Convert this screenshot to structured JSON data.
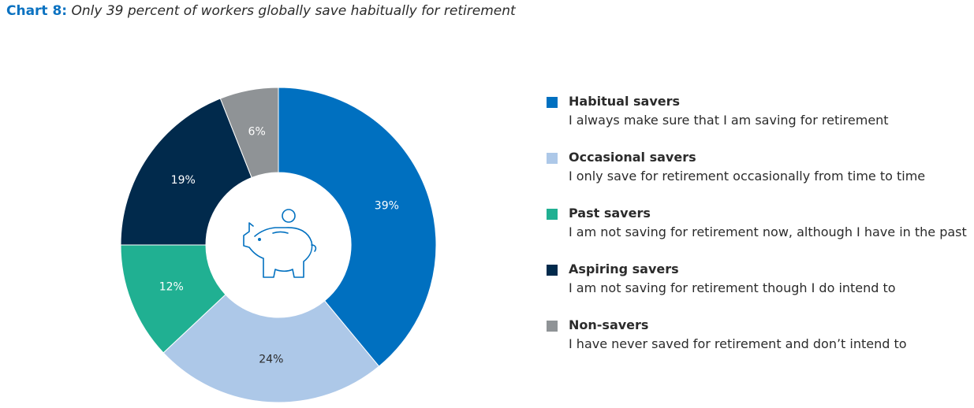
{
  "title": {
    "prefix": "Chart 8:",
    "text": "Only 39 percent of workers globally save habitually for retirement"
  },
  "chart_data": {
    "type": "pie",
    "donut": true,
    "center_icon": "piggy-bank-icon",
    "labels": [
      "Habitual savers",
      "Occasional savers",
      "Past savers",
      "Aspiring savers",
      "Non-savers"
    ],
    "values": [
      39,
      24,
      12,
      19,
      6
    ],
    "value_labels": [
      "39%",
      "24%",
      "12%",
      "19%",
      "6%"
    ],
    "colors": [
      "#0070c0",
      "#adc8e8",
      "#20b092",
      "#012a4c",
      "#8f9396"
    ],
    "label_colors": [
      "#ffffff",
      "#2b2b2b",
      "#ffffff",
      "#ffffff",
      "#ffffff"
    ],
    "legend_placement": "right"
  },
  "legend": [
    {
      "name": "Habitual savers",
      "desc": "I always make sure that I am saving for retirement"
    },
    {
      "name": "Occasional savers",
      "desc": "I only save for retirement occasionally from time to time"
    },
    {
      "name": "Past savers",
      "desc": "I am not saving for retirement now, although I have in the past"
    },
    {
      "name": "Aspiring savers",
      "desc": "I am not saving for retirement though I do intend to"
    },
    {
      "name": "Non-savers",
      "desc": "I have never saved for retirement and don’t intend to"
    }
  ]
}
